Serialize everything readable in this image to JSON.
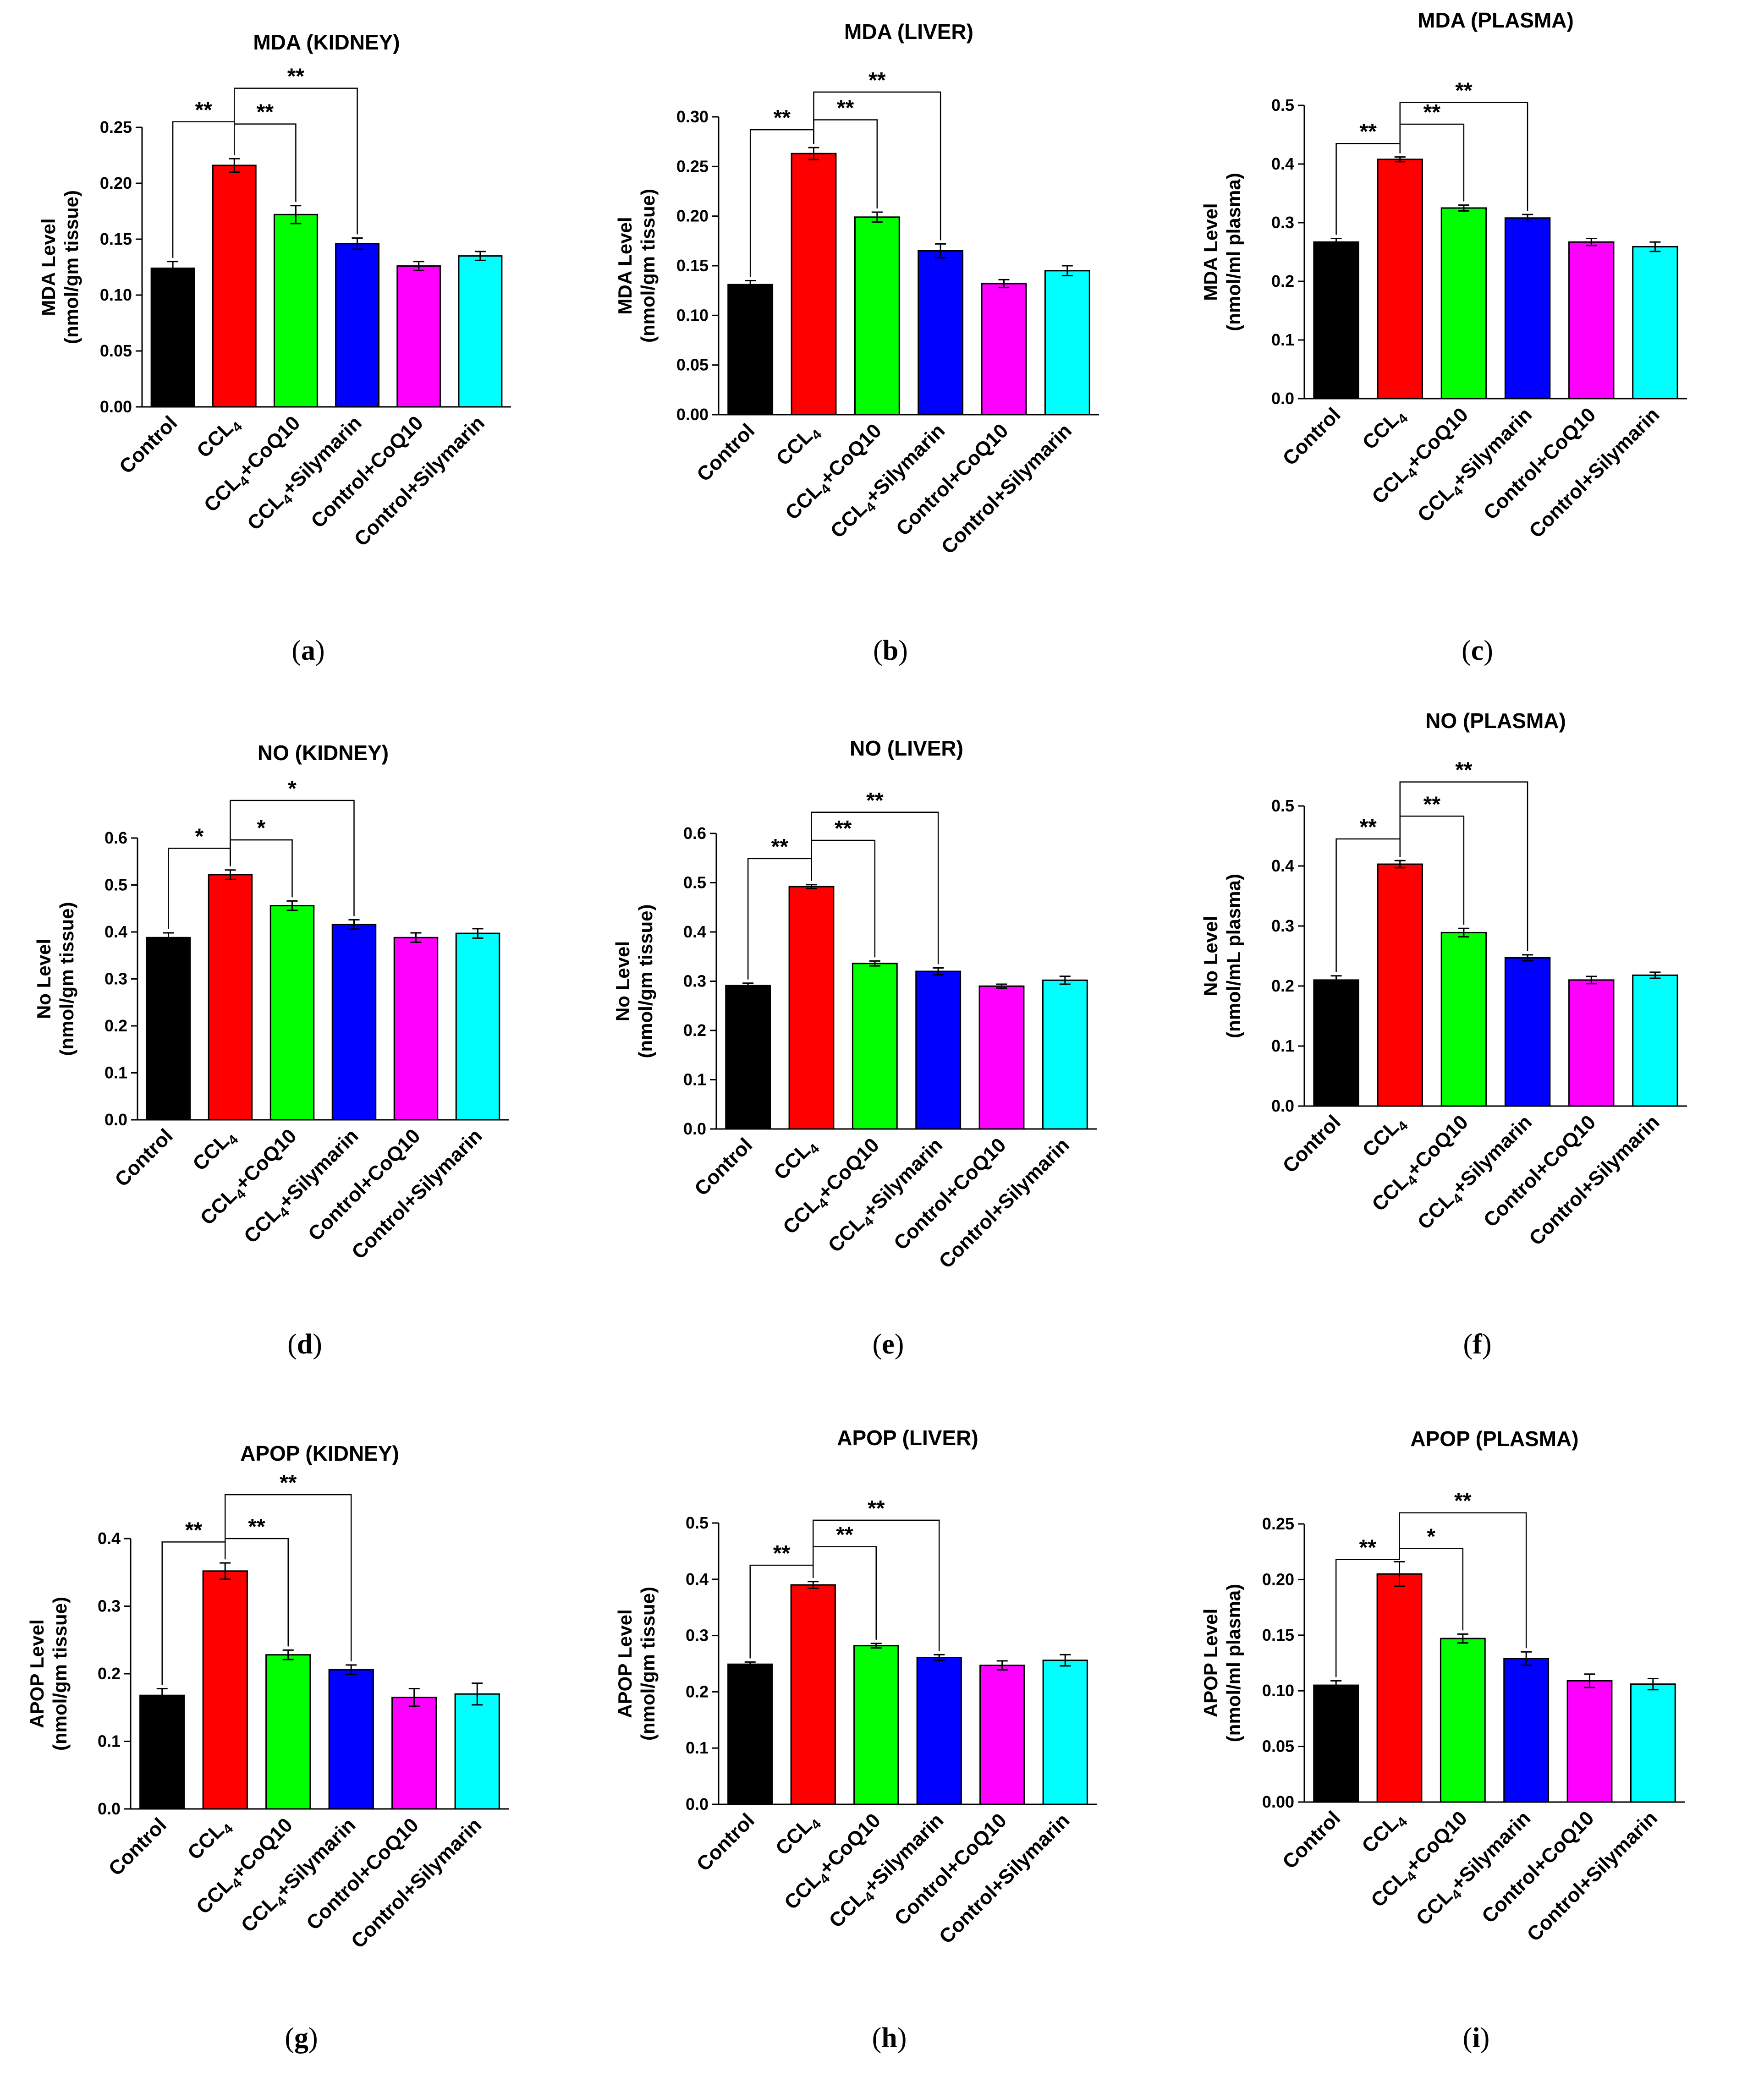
{
  "categories": [
    {
      "main": "Control",
      "sub": "",
      "rest": ""
    },
    {
      "main": "CCL",
      "sub": "4",
      "rest": ""
    },
    {
      "main": "CCL",
      "sub": "4",
      "rest": "+CoQ10"
    },
    {
      "main": "CCL",
      "sub": "4",
      "rest": "+Silymarin"
    },
    {
      "main": "Control+CoQ10",
      "sub": "",
      "rest": ""
    },
    {
      "main": "Control+Silymarin",
      "sub": "",
      "rest": ""
    }
  ],
  "colors": [
    "#000000",
    "#ff0000",
    "#00ff00",
    "#0000ff",
    "#ff00ff",
    "#00ffff"
  ],
  "chart_data": [
    {
      "type": "bar",
      "title": "MDA (KIDNEY)",
      "ylabel_line1": "MDA Level",
      "ylabel_line2": "(nmol/gm tissue)",
      "caption_letter": "a",
      "ylim": [
        0,
        0.25
      ],
      "ticks": [
        0.0,
        0.05,
        0.1,
        0.15,
        0.2,
        0.25
      ],
      "decimals": 2,
      "values": [
        0.124,
        0.216,
        0.172,
        0.146,
        0.126,
        0.135
      ],
      "errors": [
        0.006,
        0.006,
        0.008,
        0.005,
        0.004,
        0.004
      ],
      "significance": [
        {
          "from": 0,
          "to": 1,
          "label": "**",
          "level": 0.255
        },
        {
          "from": 1,
          "to": 2,
          "label": "**",
          "level": 0.253
        },
        {
          "from": 1,
          "to": 3,
          "label": "**",
          "level": 0.285
        }
      ]
    },
    {
      "type": "bar",
      "title": "MDA (LIVER)",
      "ylabel_line1": "MDA Level",
      "ylabel_line2": "(nmol/gm tissue)",
      "caption_letter": "b",
      "ylim": [
        0,
        0.3
      ],
      "ticks": [
        0.0,
        0.05,
        0.1,
        0.15,
        0.2,
        0.25,
        0.3
      ],
      "decimals": 2,
      "values": [
        0.131,
        0.263,
        0.199,
        0.165,
        0.132,
        0.145
      ],
      "errors": [
        0.004,
        0.006,
        0.005,
        0.007,
        0.004,
        0.005
      ],
      "significance": [
        {
          "from": 0,
          "to": 1,
          "label": "**",
          "level": 0.287
        },
        {
          "from": 1,
          "to": 2,
          "label": "**",
          "level": 0.297
        },
        {
          "from": 1,
          "to": 3,
          "label": "**",
          "level": 0.325
        }
      ]
    },
    {
      "type": "bar",
      "title": "MDA (PLASMA)",
      "ylabel_line1": "MDA Level",
      "ylabel_line2": "(nmol/ml plasma)",
      "caption_letter": "c",
      "ylim": [
        0,
        0.5
      ],
      "ticks": [
        0.0,
        0.1,
        0.2,
        0.3,
        0.4,
        0.5
      ],
      "decimals": 1,
      "values": [
        0.267,
        0.408,
        0.325,
        0.308,
        0.267,
        0.259
      ],
      "errors": [
        0.006,
        0.004,
        0.005,
        0.006,
        0.006,
        0.008
      ],
      "significance": [
        {
          "from": 0,
          "to": 1,
          "label": "**",
          "level": 0.435
        },
        {
          "from": 1,
          "to": 2,
          "label": "**",
          "level": 0.468
        },
        {
          "from": 1,
          "to": 3,
          "label": "**",
          "level": 0.505
        }
      ]
    },
    {
      "type": "bar",
      "title": "NO (KIDNEY)",
      "ylabel_line1": "No Level",
      "ylabel_line2": "(nmol/gm tissue)",
      "caption_letter": "d",
      "ylim": [
        0,
        0.6
      ],
      "ticks": [
        0.0,
        0.1,
        0.2,
        0.3,
        0.4,
        0.5,
        0.6
      ],
      "decimals": 1,
      "values": [
        0.388,
        0.522,
        0.456,
        0.416,
        0.388,
        0.397
      ],
      "errors": [
        0.01,
        0.01,
        0.01,
        0.01,
        0.01,
        0.01
      ],
      "significance": [
        {
          "from": 0,
          "to": 1,
          "label": "*",
          "level": 0.578
        },
        {
          "from": 1,
          "to": 2,
          "label": "*",
          "level": 0.596
        },
        {
          "from": 1,
          "to": 3,
          "label": "*",
          "level": 0.68
        }
      ]
    },
    {
      "type": "bar",
      "title": "NO (LIVER)",
      "ylabel_line1": "No Level",
      "ylabel_line2": "(nmol/gm tissue)",
      "caption_letter": "e",
      "ylim": [
        0,
        0.6
      ],
      "ticks": [
        0.0,
        0.1,
        0.2,
        0.3,
        0.4,
        0.5,
        0.6
      ],
      "decimals": 1,
      "values": [
        0.291,
        0.492,
        0.336,
        0.32,
        0.29,
        0.302
      ],
      "errors": [
        0.005,
        0.004,
        0.005,
        0.007,
        0.004,
        0.008
      ],
      "significance": [
        {
          "from": 0,
          "to": 1,
          "label": "**",
          "level": 0.549
        },
        {
          "from": 1,
          "to": 2,
          "label": "**",
          "level": 0.586
        },
        {
          "from": 1,
          "to": 3,
          "label": "**",
          "level": 0.643
        }
      ]
    },
    {
      "type": "bar",
      "title": "NO (PLASMA)",
      "ylabel_line1": "No Level",
      "ylabel_line2": "(nmol/mL plasma)",
      "caption_letter": "f",
      "ylim": [
        0,
        0.5
      ],
      "ticks": [
        0.0,
        0.1,
        0.2,
        0.3,
        0.4,
        0.5
      ],
      "decimals": 1,
      "values": [
        0.21,
        0.403,
        0.289,
        0.247,
        0.21,
        0.218
      ],
      "errors": [
        0.007,
        0.006,
        0.007,
        0.005,
        0.006,
        0.005
      ],
      "significance": [
        {
          "from": 0,
          "to": 1,
          "label": "**",
          "level": 0.445
        },
        {
          "from": 1,
          "to": 2,
          "label": "**",
          "level": 0.483
        },
        {
          "from": 1,
          "to": 3,
          "label": "**",
          "level": 0.54
        }
      ]
    },
    {
      "type": "bar",
      "title": "APOP (KIDNEY)",
      "ylabel_line1": "APOP Level",
      "ylabel_line2": "(nmol/gm tissue)",
      "caption_letter": "g",
      "ylim": [
        0,
        0.4
      ],
      "ticks": [
        0.0,
        0.1,
        0.2,
        0.3,
        0.4
      ],
      "decimals": 1,
      "values": [
        0.168,
        0.352,
        0.228,
        0.206,
        0.165,
        0.17
      ],
      "errors": [
        0.01,
        0.012,
        0.007,
        0.007,
        0.013,
        0.016
      ],
      "significance": [
        {
          "from": 0,
          "to": 1,
          "label": "**",
          "level": 0.395
        },
        {
          "from": 1,
          "to": 2,
          "label": "**",
          "level": 0.4
        },
        {
          "from": 1,
          "to": 3,
          "label": "**",
          "level": 0.465
        }
      ]
    },
    {
      "type": "bar",
      "title": "APOP (LIVER)",
      "ylabel_line1": "APOP Level",
      "ylabel_line2": "(nmol/gm tissue)",
      "caption_letter": "h",
      "ylim": [
        0,
        0.5
      ],
      "ticks": [
        0.0,
        0.1,
        0.2,
        0.3,
        0.4,
        0.5
      ],
      "decimals": 1,
      "values": [
        0.249,
        0.39,
        0.282,
        0.261,
        0.247,
        0.256
      ],
      "errors": [
        0.004,
        0.006,
        0.004,
        0.005,
        0.008,
        0.01
      ],
      "significance": [
        {
          "from": 0,
          "to": 1,
          "label": "**",
          "level": 0.425
        },
        {
          "from": 1,
          "to": 2,
          "label": "**",
          "level": 0.458
        },
        {
          "from": 1,
          "to": 3,
          "label": "**",
          "level": 0.505
        }
      ]
    },
    {
      "type": "bar",
      "title": "APOP (PLASMA)",
      "ylabel_line1": "APOP Level",
      "ylabel_line2": "(nmol/ml plasma)",
      "caption_letter": "i",
      "ylim": [
        0,
        0.25
      ],
      "ticks": [
        0.0,
        0.05,
        0.1,
        0.15,
        0.2,
        0.25
      ],
      "decimals": 2,
      "values": [
        0.105,
        0.205,
        0.147,
        0.129,
        0.109,
        0.106
      ],
      "errors": [
        0.004,
        0.011,
        0.004,
        0.006,
        0.006,
        0.005
      ],
      "significance": [
        {
          "from": 0,
          "to": 1,
          "label": "**",
          "level": 0.218
        },
        {
          "from": 1,
          "to": 2,
          "label": "*",
          "level": 0.228
        },
        {
          "from": 1,
          "to": 3,
          "label": "**",
          "level": 0.26
        }
      ]
    }
  ]
}
